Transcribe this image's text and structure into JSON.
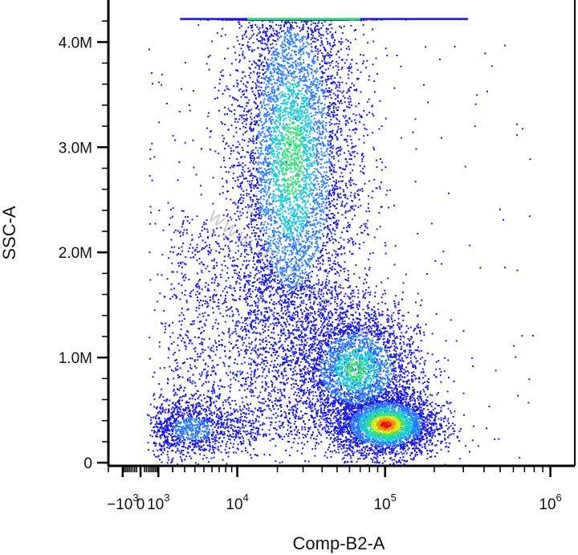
{
  "chart_data": {
    "type": "scatter",
    "subtype": "flow-cytometry density dot plot",
    "xlabel": "Comp-B2-A",
    "ylabel": "SSC-A",
    "x_scale": "biexponential",
    "x_ticks": [
      {
        "value": -1000,
        "base": "−10",
        "exp": "3"
      },
      {
        "value": 0,
        "base": "0",
        "exp": ""
      },
      {
        "value": 1000,
        "base": "10",
        "exp": "3"
      },
      {
        "value": 10000,
        "base": "10",
        "exp": "4"
      },
      {
        "value": 100000,
        "base": "10",
        "exp": "5"
      },
      {
        "value": 1000000,
        "base": "10",
        "exp": "6"
      }
    ],
    "y_ticks": [
      {
        "value": 0,
        "label": "0"
      },
      {
        "value": 1000000,
        "label": "1.0M"
      },
      {
        "value": 2000000,
        "label": "2.0M"
      },
      {
        "value": 3000000,
        "label": "3.0M"
      },
      {
        "value": 4000000,
        "label": "4.0M"
      }
    ],
    "ylim": [
      -30000,
      4400000
    ],
    "color_scale": [
      "#1818e0",
      "#2a7cff",
      "#19c8d8",
      "#33e07a",
      "#d8e81c",
      "#ff8a00",
      "#e81010"
    ],
    "populations": [
      {
        "x_center": 25000,
        "y_center": 2900000,
        "x_spread_decades": 0.22,
        "y_spread": 1100000,
        "peak_density": "medium",
        "color_peak": "#33e07a"
      },
      {
        "x_center": 100000,
        "y_center": 370000,
        "x_spread_decades": 0.16,
        "y_spread": 150000,
        "peak_density": "high",
        "color_peak": "#e81010"
      },
      {
        "x_center": 65000,
        "y_center": 900000,
        "x_spread_decades": 0.2,
        "y_spread": 300000,
        "peak_density": "medium",
        "color_peak": "#19c8d8"
      },
      {
        "x_center": 3500,
        "y_center": 330000,
        "x_spread_decades": 0.35,
        "y_spread": 150000,
        "peak_density": "low",
        "color_peak": "#2a7cff"
      }
    ],
    "saturation_line_y": 4220000,
    "grid": false,
    "legend": "none"
  },
  "watermark": "www.epizyme.com"
}
